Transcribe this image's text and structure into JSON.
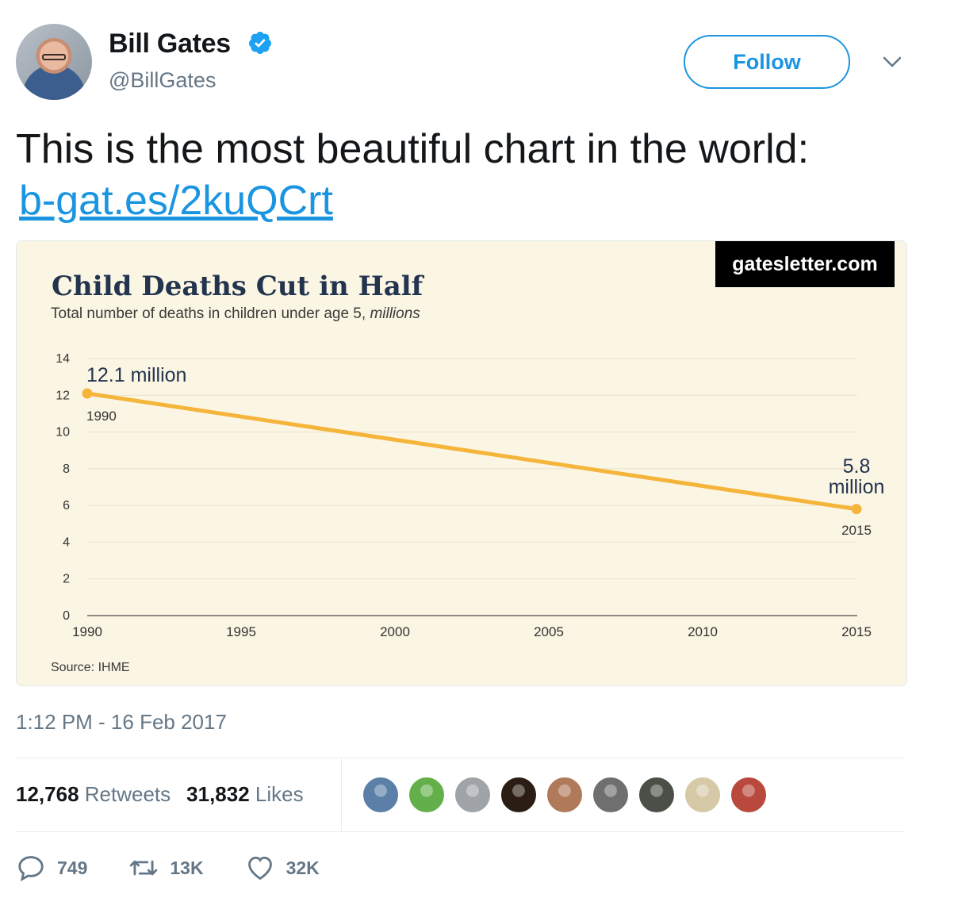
{
  "tweet": {
    "author_name": "Bill Gates",
    "handle": "@BillGates",
    "follow_label": "Follow",
    "text": "This is the most beautiful chart in the world:",
    "link": "b-gat.es/2kuQCrt",
    "timestamp": "1:12 PM - 16 Feb 2017"
  },
  "stats": {
    "retweets_count": "12,768",
    "retweets_label": "Retweets",
    "likes_count": "31,832",
    "likes_label": "Likes"
  },
  "actions": {
    "replies": "749",
    "retweets": "13K",
    "likes": "32K"
  },
  "card": {
    "badge": "gatesletter.com",
    "source": "Source: IHME"
  },
  "colors": {
    "accent": "#1b95e0",
    "chart_line": "#f5b43a",
    "chart_bg": "#fbf5e3",
    "chart_title": "#23344f"
  },
  "liker_colors": [
    "#5b7fa6",
    "#63b04a",
    "#a0a3a8",
    "#2c1d14",
    "#b07a5a",
    "#6f6f6f",
    "#4a4f47",
    "#d6c9a8",
    "#b9483d"
  ],
  "chart_data": {
    "type": "line",
    "title": "Child Deaths Cut in Half",
    "subtitle": "Total number of deaths in children under age 5,",
    "subtitle_unit": "millions",
    "x": [
      1990,
      2015
    ],
    "y": [
      12.1,
      5.8
    ],
    "xticks": [
      1990,
      1995,
      2000,
      2005,
      2010,
      2015
    ],
    "yticks": [
      0,
      2,
      4,
      6,
      8,
      10,
      12,
      14
    ],
    "xlim": [
      1990,
      2015
    ],
    "ylim": [
      0,
      14
    ],
    "grid": true,
    "annotations": [
      {
        "label": "12.1 million",
        "year_label": "1990",
        "x": 1990,
        "y": 12.1
      },
      {
        "label_line1": "5.8",
        "label_line2": "million",
        "year_label": "2015",
        "x": 2015,
        "y": 5.8
      }
    ]
  }
}
